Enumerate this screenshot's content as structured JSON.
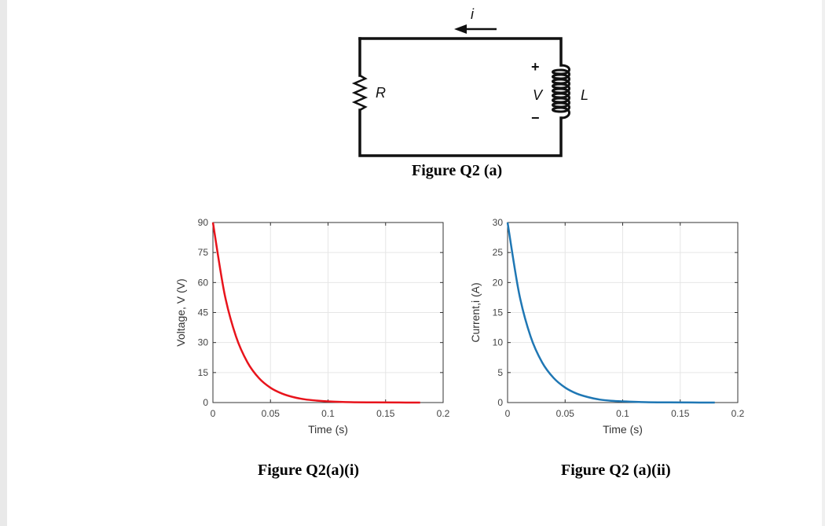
{
  "circuit": {
    "current_label": "i",
    "resistor_label": "R",
    "voltage_label": "V",
    "voltage_plus": "+",
    "voltage_minus": "−",
    "inductor_label": "L",
    "caption": "Figure Q2 (a)"
  },
  "captions": {
    "voltage_figure": "Figure Q2(a)(i)",
    "current_figure": "Figure Q2 (a)(ii)"
  },
  "colors": {
    "voltage_curve": "#e8141c",
    "current_curve": "#1f77b4",
    "grid": "#e6e6e6"
  },
  "chart_data": [
    {
      "type": "line",
      "xlabel": "Time (s)",
      "ylabel": "Voltage, V (V)",
      "xlim": [
        0,
        0.2
      ],
      "ylim": [
        0,
        90
      ],
      "xticks": [
        0,
        0.05,
        0.1,
        0.15,
        0.2
      ],
      "xtick_labels": [
        "0",
        "0.05",
        "0.1",
        "0.15",
        "0.2"
      ],
      "yticks": [
        0,
        15,
        30,
        45,
        60,
        75,
        90
      ],
      "ytick_labels": [
        "0",
        "15",
        "30",
        "45",
        "60",
        "75",
        "90"
      ],
      "grid": true,
      "series": [
        {
          "x": [
            0,
            0.01,
            0.02,
            0.03,
            0.04,
            0.05,
            0.06,
            0.07,
            0.08,
            0.09,
            0.1,
            0.12,
            0.14,
            0.16,
            0.18
          ],
          "y": [
            90,
            54.6,
            33.1,
            20.1,
            12.2,
            7.4,
            4.5,
            2.7,
            1.6,
            1.0,
            0.6,
            0.2,
            0.1,
            0.03,
            0.01
          ]
        }
      ]
    },
    {
      "type": "line",
      "xlabel": "Time (s)",
      "ylabel": "Current,i (A)",
      "xlim": [
        0,
        0.2
      ],
      "ylim": [
        0,
        30
      ],
      "xticks": [
        0,
        0.05,
        0.1,
        0.15,
        0.2
      ],
      "xtick_labels": [
        "0",
        "0.05",
        "0.1",
        "0.15",
        "0.2"
      ],
      "yticks": [
        0,
        5,
        10,
        15,
        20,
        25,
        30
      ],
      "ytick_labels": [
        "0",
        "5",
        "10",
        "15",
        "20",
        "25",
        "30"
      ],
      "grid": true,
      "series": [
        {
          "x": [
            0,
            0.01,
            0.02,
            0.03,
            0.04,
            0.05,
            0.06,
            0.07,
            0.08,
            0.09,
            0.1,
            0.12,
            0.14,
            0.16,
            0.18
          ],
          "y": [
            30,
            18.2,
            11.0,
            6.7,
            4.1,
            2.5,
            1.5,
            0.9,
            0.5,
            0.3,
            0.2,
            0.07,
            0.03,
            0.01,
            0.0
          ]
        }
      ]
    }
  ]
}
